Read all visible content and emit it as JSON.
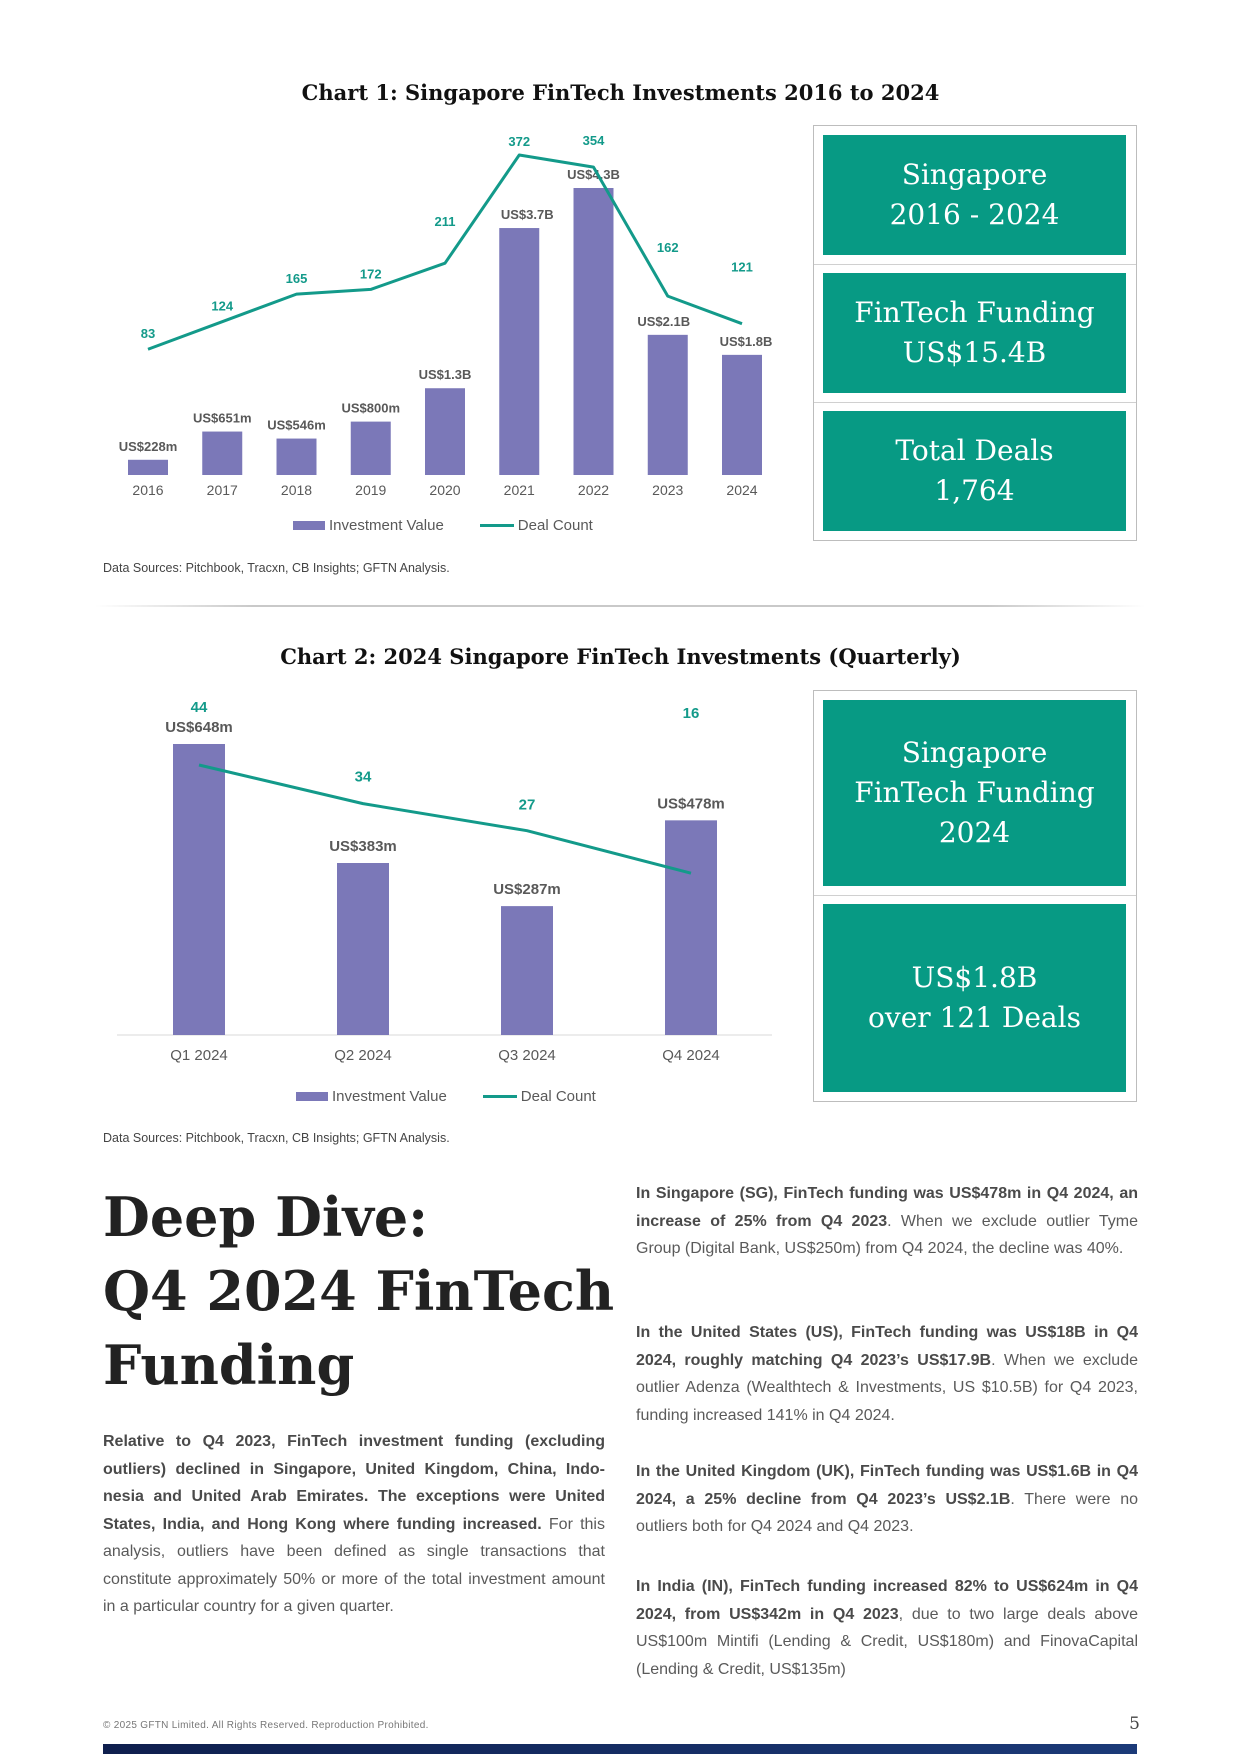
{
  "chart1": {
    "title": "Chart 1: Singapore FinTech Investments 2016 to 2024",
    "legend": {
      "bar": "Investment Value",
      "line": "Deal Count"
    },
    "source": "Data Sources: Pitchbook, Tracxn, CB Insights; GFTN Analysis."
  },
  "chart2": {
    "title": "Chart 2: 2024 Singapore FinTech Investments (Quarterly)",
    "legend": {
      "bar": "Investment Value",
      "line": "Deal Count"
    },
    "source": "Data Sources: Pitchbook, Tracxn, CB Insights; GFTN Analysis."
  },
  "chart_data": [
    {
      "type": "bar",
      "title": "Chart 1: Singapore FinTech Investments 2016 to 2024",
      "categories": [
        "2016",
        "2017",
        "2018",
        "2019",
        "2020",
        "2021",
        "2022",
        "2023",
        "2024"
      ],
      "series": [
        {
          "name": "Investment Value",
          "type": "bar",
          "values": [
            228,
            651,
            546,
            800,
            1300,
            3700,
            4300,
            2100,
            1800
          ],
          "unit": "US$m",
          "labels": [
            "US$228m",
            "US$651m",
            "US$546m",
            "US$800m",
            "US$1.3B",
            "US$3.7B",
            "US$4.3B",
            "US$2.1B",
            "US$1.8B"
          ],
          "color": "#7b78b8"
        },
        {
          "name": "Deal Count",
          "type": "line",
          "values": [
            83,
            124,
            165,
            172,
            211,
            372,
            354,
            162,
            121
          ],
          "labels": [
            "83",
            "124",
            "165",
            "172",
            "211",
            "372",
            "354",
            "162",
            "121"
          ],
          "color": "#139a8a"
        }
      ],
      "legend_position": "bottom",
      "grid": false
    },
    {
      "type": "bar",
      "title": "Chart 2: 2024 Singapore FinTech Investments (Quarterly)",
      "categories": [
        "Q1 2024",
        "Q2 2024",
        "Q3 2024",
        "Q4 2024"
      ],
      "series": [
        {
          "name": "Investment Value",
          "type": "bar",
          "values": [
            648,
            383,
            287,
            478
          ],
          "unit": "US$m",
          "labels": [
            "US$648m",
            "US$383m",
            "US$287m",
            "US$478m"
          ],
          "color": "#7b78b8"
        },
        {
          "name": "Deal Count",
          "type": "line",
          "values": [
            44,
            34,
            27,
            16
          ],
          "labels": [
            "44",
            "34",
            "27",
            "16"
          ],
          "color": "#139a8a"
        }
      ],
      "legend_position": "bottom",
      "grid": false
    }
  ],
  "stats1": [
    {
      "text": "Singapore\n2016 - 2024"
    },
    {
      "text": "FinTech Funding\nUS$15.4B"
    },
    {
      "text": "Total Deals\n1,764"
    }
  ],
  "stats2": [
    {
      "text": "Singapore\nFinTech Funding\n2024"
    },
    {
      "text": "US$1.8B\nover 121 Deals"
    }
  ],
  "deep_dive": {
    "title_lines": [
      "Deep Dive:",
      "Q4 2024 FinTech",
      "Funding"
    ],
    "left_para_bold": "Relative to Q4 2023, FinTech investment funding (excluding outliers) declined in Singapore, United Kingdom, China, Indo-nesia and United Arab Emirates. The exceptions were United States, India, and Hong Kong where funding increased.",
    "left_para_rest": " For this analysis, outliers have been defined as single transactions that constitute approximately 50% or more of the total investment amount in a particular country for a given quarter.",
    "right_paras": [
      {
        "bold": "In Singapore (SG), FinTech funding was US$478m in Q4 2024, an increase of 25% from Q4 2023",
        "rest": ". When we exclude outlier Tyme Group (Digital Bank, US$250m) from Q4 2024, the decline was 40%."
      },
      {
        "bold": "In the United States (US), FinTech funding was US$18B in Q4 2024, roughly matching Q4 2023’s US$17.9B",
        "rest": ". When we exclude outlier Adenza (Wealthtech & Investments, US $10.5B) for Q4 2023, funding increased 141% in Q4 2024."
      },
      {
        "bold": "In the United Kingdom (UK), FinTech funding was US$1.6B in Q4 2024, a 25% decline from Q4 2023’s US$2.1B",
        "rest": ". There were no outliers both for Q4 2024 and Q4 2023."
      },
      {
        "bold": "In India (IN), FinTech funding increased 82% to US$624m in Q4 2024, from US$342m in Q4 2023",
        "rest": ", due to two large deals above US$100m Mintifi (Lending & Credit, US$180m) and FinovaCapital (Lending & Credit, US$135m)"
      }
    ]
  },
  "footer": {
    "copyright": "© 2025 GFTN Limited. All Rights Reserved. Reproduction Prohibited.",
    "page_number": "5"
  }
}
